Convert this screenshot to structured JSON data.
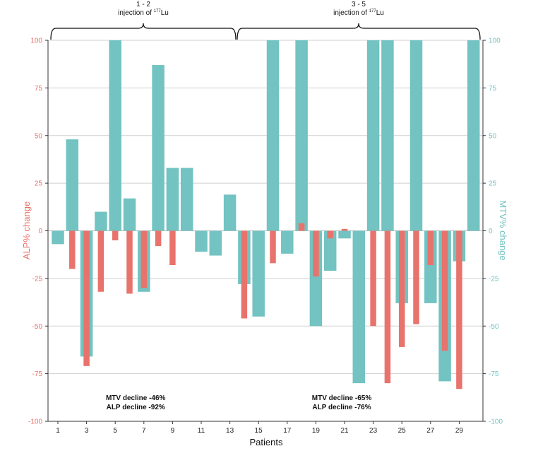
{
  "chart_data": {
    "type": "bar",
    "title": "",
    "xlabel": "Patients",
    "ylabel_left": "ALP% change",
    "ylabel_right": "MTV% change",
    "ylim": [
      -100,
      100
    ],
    "yticks": [
      100,
      75,
      50,
      25,
      0,
      -25,
      -50,
      -75,
      -100
    ],
    "xlim": [
      0.5,
      30.5
    ],
    "xticks": [
      1,
      3,
      5,
      7,
      9,
      11,
      13,
      15,
      17,
      19,
      21,
      23,
      25,
      27,
      29
    ],
    "patients": [
      1,
      2,
      3,
      4,
      5,
      6,
      7,
      8,
      9,
      10,
      11,
      12,
      13,
      14,
      15,
      16,
      17,
      18,
      19,
      20,
      21,
      22,
      23,
      24,
      25,
      26,
      27,
      28,
      29,
      30
    ],
    "series": [
      {
        "name": "ALP% change",
        "axis": "left",
        "color": "#e8736c",
        "values": [
          0,
          -20,
          -71,
          -32,
          -5,
          -33,
          -30,
          -8,
          -18,
          0,
          0,
          0,
          0,
          -46,
          0,
          -17,
          0,
          4,
          -24,
          -4,
          1,
          0,
          -50,
          -80,
          -61,
          -49,
          -18,
          -63,
          -83,
          0
        ]
      },
      {
        "name": "MTV% change",
        "axis": "right",
        "color": "#72c3c1",
        "values": [
          -7,
          48,
          -66,
          10,
          100,
          17,
          -32,
          87,
          33,
          33,
          -11,
          -13,
          19,
          -28,
          -45,
          100,
          -12,
          100,
          -50,
          -21,
          -4,
          -80,
          100,
          100,
          -38,
          100,
          -38,
          -79,
          -16,
          100
        ]
      }
    ],
    "brackets": [
      {
        "label_line1": "1 - 2",
        "label_line2_prefix": "injection of ",
        "label_sup": "177",
        "label_line2_suffix": "Lu",
        "from_patient": 1,
        "to_patient": 13
      },
      {
        "label_line1": "3 - 5",
        "label_line2_prefix": "injection of ",
        "label_sup": "177",
        "label_line2_suffix": "Lu",
        "from_patient": 14,
        "to_patient": 30
      }
    ],
    "annotations": [
      {
        "line1": "MTV decline -46%",
        "line2": "ALP decline -92%",
        "at_patient": 5
      },
      {
        "line1": "MTV decline -65%",
        "line2": "ALP decline -76%",
        "at_patient": 21
      }
    ]
  }
}
